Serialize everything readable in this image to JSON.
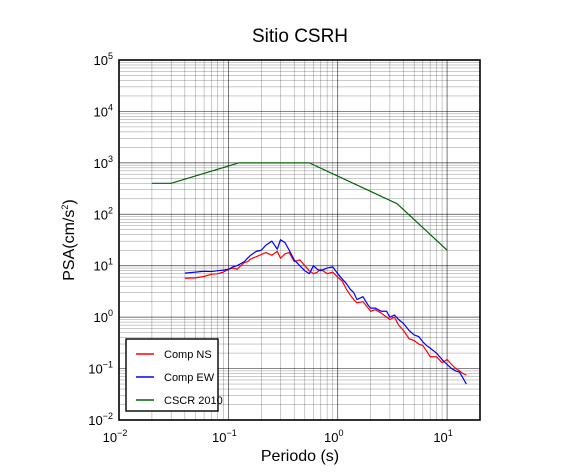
{
  "chart_data": {
    "type": "line",
    "title": "Sitio CSRH",
    "xlabel": "Periodo (s)",
    "ylabel_base": "PSA(cm/s",
    "ylabel_exp": "2",
    "ylabel_close": ")",
    "x_scale": "log",
    "y_scale": "log",
    "xlim": [
      0.01,
      20
    ],
    "ylim": [
      0.01,
      100000
    ],
    "x_ticks": [
      {
        "value": 0.01,
        "base": "10",
        "exp": "−2"
      },
      {
        "value": 0.1,
        "base": "10",
        "exp": "−1"
      },
      {
        "value": 1,
        "base": "10",
        "exp": "0"
      },
      {
        "value": 10,
        "base": "10",
        "exp": "1"
      }
    ],
    "y_ticks": [
      {
        "value": 0.01,
        "base": "10",
        "exp": "−2"
      },
      {
        "value": 0.1,
        "base": "10",
        "exp": "−1"
      },
      {
        "value": 1,
        "base": "10",
        "exp": "0"
      },
      {
        "value": 10,
        "base": "10",
        "exp": "1"
      },
      {
        "value": 100,
        "base": "10",
        "exp": "2"
      },
      {
        "value": 1000,
        "base": "10",
        "exp": "3"
      },
      {
        "value": 10000,
        "base": "10",
        "exp": "4"
      },
      {
        "value": 100000,
        "base": "10",
        "exp": "5"
      }
    ],
    "grid": true,
    "legend_position": "bottom-left",
    "series": [
      {
        "name": "Comp NS",
        "color": "#ff0000",
        "x": [
          0.04,
          0.05,
          0.06,
          0.07,
          0.08,
          0.09,
          0.1,
          0.11,
          0.12,
          0.13,
          0.14,
          0.15,
          0.16,
          0.18,
          0.2,
          0.22,
          0.25,
          0.28,
          0.3,
          0.33,
          0.36,
          0.4,
          0.45,
          0.5,
          0.55,
          0.6,
          0.65,
          0.7,
          0.8,
          0.9,
          1.0,
          1.1,
          1.2,
          1.3,
          1.4,
          1.5,
          1.7,
          1.9,
          2.0,
          2.2,
          2.5,
          2.8,
          3.0,
          3.3,
          3.6,
          4.0,
          4.5,
          5.0,
          5.5,
          6.0,
          6.5,
          7.0,
          8.0,
          9.0,
          10.0,
          11.0,
          12.0,
          13.0,
          14.0,
          15.0
        ],
        "y": [
          5.7,
          5.8,
          6.2,
          6.8,
          7.0,
          7.5,
          8.5,
          9.0,
          8.5,
          10.0,
          11.5,
          12.0,
          13.5,
          15.0,
          16.5,
          18.0,
          16.0,
          19.0,
          14.0,
          17.0,
          18.0,
          12.0,
          13.0,
          10.0,
          8.0,
          7.0,
          7.5,
          8.5,
          7.0,
          7.5,
          6.0,
          5.0,
          3.5,
          2.7,
          2.2,
          1.9,
          2.0,
          1.5,
          1.3,
          1.4,
          1.2,
          1.0,
          0.9,
          1.0,
          0.7,
          0.55,
          0.38,
          0.35,
          0.3,
          0.28,
          0.22,
          0.17,
          0.17,
          0.13,
          0.15,
          0.12,
          0.1,
          0.09,
          0.08,
          0.075
        ]
      },
      {
        "name": "Comp EW",
        "color": "#0000ff",
        "x": [
          0.04,
          0.05,
          0.06,
          0.07,
          0.08,
          0.09,
          0.1,
          0.11,
          0.12,
          0.13,
          0.14,
          0.15,
          0.16,
          0.18,
          0.2,
          0.22,
          0.25,
          0.28,
          0.3,
          0.33,
          0.36,
          0.4,
          0.45,
          0.5,
          0.55,
          0.6,
          0.65,
          0.7,
          0.8,
          0.9,
          1.0,
          1.1,
          1.2,
          1.3,
          1.4,
          1.5,
          1.7,
          1.9,
          2.0,
          2.2,
          2.5,
          2.8,
          3.0,
          3.3,
          3.6,
          4.0,
          4.5,
          5.0,
          5.5,
          6.0,
          6.5,
          7.0,
          8.0,
          9.0,
          10.0,
          11.0,
          12.0,
          13.0,
          14.0,
          15.0
        ],
        "y": [
          7.2,
          7.5,
          7.8,
          7.7,
          8.0,
          8.2,
          8.5,
          9.5,
          10.0,
          11.0,
          12.0,
          14.0,
          16.0,
          19.0,
          20.0,
          25.0,
          30.0,
          21.0,
          32.0,
          28.0,
          20.0,
          13.0,
          10.0,
          8.0,
          7.0,
          10.0,
          8.5,
          8.0,
          9.0,
          9.5,
          7.0,
          5.5,
          4.5,
          3.5,
          3.0,
          2.2,
          2.5,
          1.7,
          1.5,
          1.5,
          1.3,
          1.3,
          1.0,
          1.1,
          0.9,
          0.75,
          0.55,
          0.45,
          0.42,
          0.33,
          0.28,
          0.25,
          0.2,
          0.15,
          0.12,
          0.1,
          0.09,
          0.085,
          0.065,
          0.05
        ]
      },
      {
        "name": "CSCR 2010",
        "color": "#006400",
        "x": [
          0.02,
          0.03,
          0.125,
          0.55,
          3.5,
          10.0
        ],
        "y": [
          400,
          400,
          1000,
          1000,
          160,
          20
        ]
      }
    ]
  }
}
